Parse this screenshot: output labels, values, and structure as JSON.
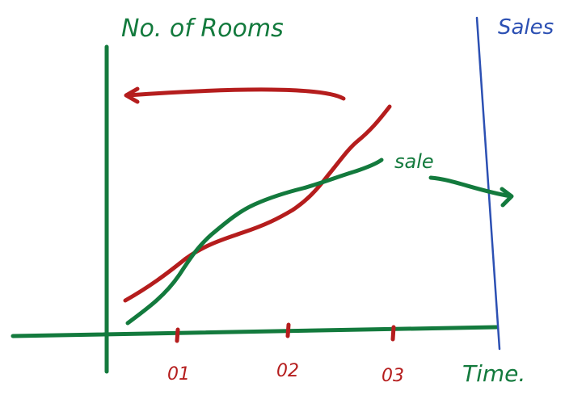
{
  "labels": {
    "left_axis": "No. of Rooms",
    "right_axis": "Sales",
    "curve": "sale",
    "x_axis": "Time.",
    "ticks": [
      "01",
      "02",
      "03"
    ]
  }
}
